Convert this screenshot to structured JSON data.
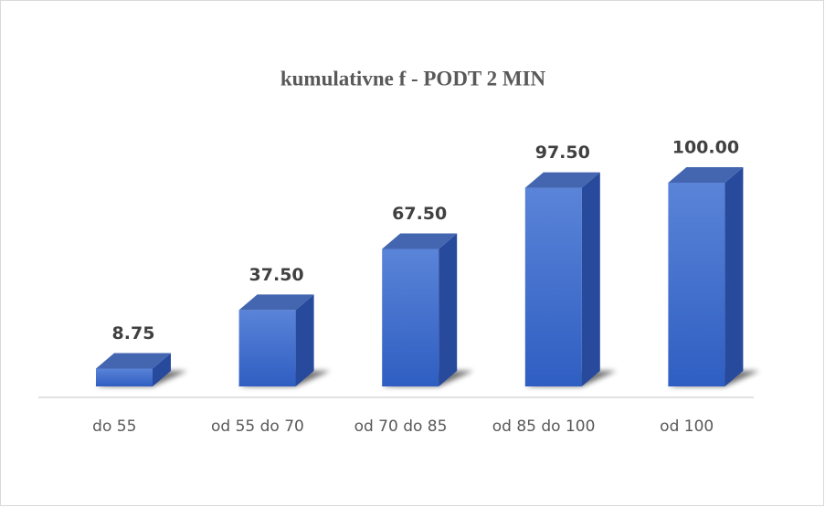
{
  "chart_data": {
    "type": "bar3d",
    "title": "kumulativne  f - PODT 2 MIN",
    "categories": [
      "do 55",
      "od 55 do 70",
      "od 70 do 85",
      "od 85 do 100",
      "od 100"
    ],
    "values": [
      8.75,
      37.5,
      67.5,
      97.5,
      100
    ],
    "value_labels": [
      "8.75",
      "37.50",
      "67.50",
      "97.50",
      "100.00"
    ],
    "color": "#3a68cc"
  }
}
